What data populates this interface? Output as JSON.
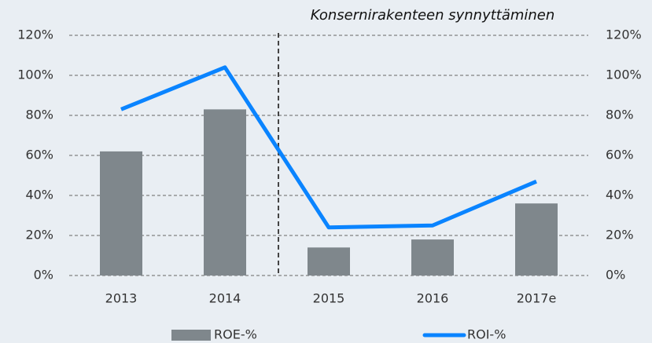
{
  "chart_data": {
    "type": "bar_line",
    "annotation": "Konsernirakenteen synnyttäminen",
    "categories": [
      "2013",
      "2014",
      "2015",
      "2016",
      "2017e"
    ],
    "series": [
      {
        "name": "ROE-%",
        "type": "bar",
        "color": "#7f878c",
        "values": [
          62,
          83,
          14,
          18,
          36
        ]
      },
      {
        "name": "ROI-%",
        "type": "line",
        "axis": "y2",
        "color": "#0a84ff",
        "values": [
          83,
          104,
          24,
          25,
          47
        ]
      }
    ],
    "ylim": [
      0,
      120
    ],
    "yticks": [
      {
        "value": 0,
        "label": "0%"
      },
      {
        "value": 20,
        "label": "20%"
      },
      {
        "value": 40,
        "label": "40%"
      },
      {
        "value": 60,
        "label": "60%"
      },
      {
        "value": 80,
        "label": "80%"
      },
      {
        "value": 100,
        "label": "100%"
      },
      {
        "value": 120,
        "label": "120%"
      }
    ],
    "y2lim": [
      0,
      120
    ],
    "y2ticks": [
      {
        "value": 0,
        "label": "0%"
      },
      {
        "value": 20,
        "label": "20%"
      },
      {
        "value": 40,
        "label": "40%"
      },
      {
        "value": 60,
        "label": "60%"
      },
      {
        "value": 80,
        "label": "80%"
      },
      {
        "value": 100,
        "label": "100%"
      },
      {
        "value": 120,
        "label": "120%"
      }
    ],
    "grid": true,
    "legend": "bottom"
  }
}
